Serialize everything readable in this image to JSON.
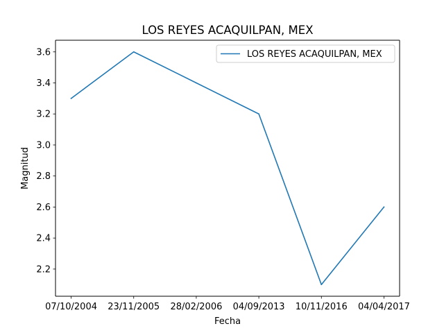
{
  "chart_data": {
    "type": "line",
    "title": "LOS REYES ACAQUILPAN, MEX",
    "xlabel": "Fecha",
    "ylabel": "Magnitud",
    "categories": [
      "07/10/2004",
      "23/11/2005",
      "28/02/2006",
      "04/09/2013",
      "10/11/2016",
      "04/04/2017"
    ],
    "series": [
      {
        "name": "LOS REYES ACAQUILPAN, MEX",
        "color": "#1f77b4",
        "values": [
          3.3,
          3.6,
          3.4,
          3.2,
          2.1,
          2.6
        ]
      }
    ],
    "ylim": [
      2.025,
      3.675
    ],
    "yticks": [
      2.2,
      2.4,
      2.6,
      2.8,
      3.0,
      3.2,
      3.4,
      3.6
    ],
    "ytick_labels": [
      "2.2",
      "2.4",
      "2.6",
      "2.8",
      "3.0",
      "3.2",
      "3.4",
      "3.6"
    ],
    "grid": false,
    "legend_position": "top-right"
  }
}
